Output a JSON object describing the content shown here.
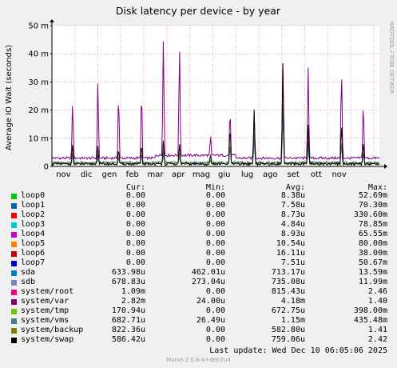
{
  "chart_data": {
    "type": "line",
    "title": "Disk latency per device - by year",
    "ylabel": "Average IO Wait (seconds)",
    "side_label": "RRDTOOL / TOBI OETIKER",
    "ylim": [
      0,
      0.05
    ],
    "yticks": [
      {
        "value": 0,
        "label": "0"
      },
      {
        "value": 0.01,
        "label": "10 m"
      },
      {
        "value": 0.02,
        "label": "20 m"
      },
      {
        "value": 0.03,
        "label": "30 m"
      },
      {
        "value": 0.04,
        "label": "40 m"
      },
      {
        "value": 0.05,
        "label": "50 m"
      }
    ],
    "xticks": [
      "nov",
      "dic",
      "gen",
      "feb",
      "mar",
      "apr",
      "mag",
      "giu",
      "lug",
      "ago",
      "set",
      "ott",
      "nov"
    ],
    "spike_months": [
      0.9,
      2.0,
      2.9,
      3.9,
      4.85,
      5.55,
      6.9,
      7.75,
      8.8,
      10.05,
      11.15,
      12.6,
      13.55,
      13.85
    ],
    "spikes_system_var": [
      0.0253,
      0.032,
      0.0285,
      0.03,
      0.0485,
      0.0465,
      0.013,
      0.023,
      0.0205,
      0.039,
      0.0355,
      0.038,
      0.025,
      0.0
    ],
    "spikes_system_swap": [
      0.009,
      0.008,
      0.007,
      0.009,
      0.01,
      0.009,
      0.005,
      0.016,
      0.02,
      0.039,
      0.015,
      0.017,
      0.01,
      0.0
    ],
    "columns": [
      "Cur:",
      "Min:",
      "Avg:",
      "Max:"
    ],
    "series": [
      {
        "name": "loop0",
        "color": "#00cc00",
        "cur": "0.00",
        "min": "0.00",
        "avg": "8.38u",
        "max": "52.69m"
      },
      {
        "name": "loop1",
        "color": "#0066b3",
        "cur": "0.00",
        "min": "0.00",
        "avg": "7.58u",
        "max": "70.30m"
      },
      {
        "name": "loop2",
        "color": "#ff0000",
        "cur": "0.00",
        "min": "0.00",
        "avg": "8.73u",
        "max": "330.60m"
      },
      {
        "name": "loop3",
        "color": "#00cccc",
        "cur": "0.00",
        "min": "0.00",
        "avg": "4.84u",
        "max": "78.85m"
      },
      {
        "name": "loop4",
        "color": "#cc00cc",
        "cur": "0.00",
        "min": "0.00",
        "avg": "8.93u",
        "max": "65.55m"
      },
      {
        "name": "loop5",
        "color": "#ff8000",
        "cur": "0.00",
        "min": "0.00",
        "avg": "10.54u",
        "max": "80.00m"
      },
      {
        "name": "loop6",
        "color": "#cc0000",
        "cur": "0.00",
        "min": "0.00",
        "avg": "16.11u",
        "max": "38.00m"
      },
      {
        "name": "loop7",
        "color": "#0000cc",
        "cur": "0.00",
        "min": "0.00",
        "avg": "7.51u",
        "max": "50.67m"
      },
      {
        "name": "sda",
        "color": "#0080c0",
        "cur": "633.98u",
        "min": "462.01u",
        "avg": "713.17u",
        "max": "13.59m"
      },
      {
        "name": "sdb",
        "color": "#8080c0",
        "cur": "678.83u",
        "min": "273.04u",
        "avg": "735.08u",
        "max": "11.99m"
      },
      {
        "name": "system/root",
        "color": "#ff0080",
        "cur": "1.09m",
        "min": "0.00",
        "avg": "815.43u",
        "max": "2.46"
      },
      {
        "name": "system/var",
        "color": "#800080",
        "cur": "2.82m",
        "min": "24.00u",
        "avg": "4.18m",
        "max": "1.40"
      },
      {
        "name": "system/tmp",
        "color": "#66cc00",
        "cur": "170.94u",
        "min": "0.00",
        "avg": "672.75u",
        "max": "398.00m"
      },
      {
        "name": "system/vms",
        "color": "#408080",
        "cur": "682.71u",
        "min": "26.49u",
        "avg": "1.15m",
        "max": "435.48m"
      },
      {
        "name": "system/backup",
        "color": "#808000",
        "cur": "822.36u",
        "min": "0.00",
        "avg": "582.80u",
        "max": "1.41"
      },
      {
        "name": "system/swap",
        "color": "#000000",
        "cur": "586.42u",
        "min": "0.00",
        "avg": "759.06u",
        "max": "2.42"
      }
    ]
  },
  "footer": {
    "last_update": "Last update:  Wed Dec 10 06:05:06 2025",
    "munin": "Munin 2.0.6-4+deb7u4"
  }
}
